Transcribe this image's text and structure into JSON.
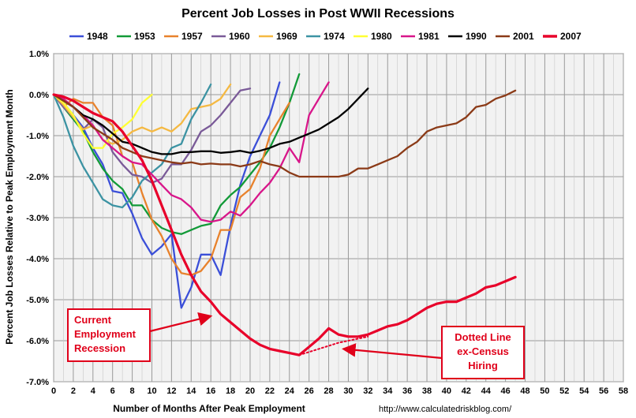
{
  "chart_data": {
    "type": "line",
    "title": "Percent Job Losses in Post WWII Recessions",
    "xlabel": "Number of Months After Peak Employment",
    "ylabel": "Percent Job Losses Relative to Peak Employment Month",
    "source": "http://www.calculatedriskblog.com/",
    "xlim": [
      0,
      58
    ],
    "ylim": [
      -7.0,
      1.0
    ],
    "x_ticks": [
      "0",
      "2",
      "4",
      "6",
      "8",
      "10",
      "12",
      "14",
      "16",
      "18",
      "20",
      "22",
      "24",
      "26",
      "28",
      "30",
      "32",
      "34",
      "36",
      "38",
      "40",
      "42",
      "44",
      "46",
      "48",
      "50",
      "52",
      "54",
      "56",
      "58"
    ],
    "y_ticks": [
      "1.0%",
      "0.0%",
      "-1.0%",
      "-2.0%",
      "-3.0%",
      "-4.0%",
      "-5.0%",
      "-6.0%",
      "-7.0%"
    ],
    "grid": true,
    "legend_position": "top",
    "series": [
      {
        "name": "1948",
        "color": "#3b4fd8",
        "values": [
          0,
          -0.2,
          -0.5,
          -0.8,
          -1.3,
          -1.7,
          -2.35,
          -2.4,
          -2.9,
          -3.5,
          -3.9,
          -3.7,
          -3.4,
          -5.2,
          -4.7,
          -3.9,
          -3.9,
          -4.4,
          -3.2,
          -2.2,
          -1.5,
          -1.0,
          -0.5,
          0.3
        ]
      },
      {
        "name": "1953",
        "color": "#129a38",
        "values": [
          0,
          -0.3,
          -0.6,
          -0.9,
          -1.4,
          -1.8,
          -2.1,
          -2.3,
          -2.7,
          -2.7,
          -3.05,
          -3.25,
          -3.35,
          -3.4,
          -3.3,
          -3.2,
          -3.15,
          -2.7,
          -2.45,
          -2.25,
          -1.95,
          -1.65,
          -1.3,
          -0.8,
          -0.2,
          0.5
        ]
      },
      {
        "name": "1957",
        "color": "#e8822c",
        "values": [
          0,
          -0.3,
          -0.1,
          -0.2,
          -0.2,
          -0.55,
          -0.75,
          -1.5,
          -1.65,
          -2.4,
          -3.05,
          -3.45,
          -4.0,
          -4.35,
          -4.4,
          -4.3,
          -4.0,
          -3.3,
          -3.3,
          -2.5,
          -2.3,
          -1.8,
          -1.0,
          -0.6,
          -0.2
        ]
      },
      {
        "name": "1960",
        "color": "#7a5a98",
        "values": [
          0,
          -0.3,
          -0.55,
          -0.85,
          -0.6,
          -0.8,
          -1.4,
          -1.7,
          -1.95,
          -2.0,
          -2.15,
          -2.05,
          -1.7,
          -1.7,
          -1.35,
          -0.9,
          -0.75,
          -0.5,
          -0.2,
          0.1,
          0.15
        ]
      },
      {
        "name": "1969",
        "color": "#f5b942",
        "values": [
          0,
          -0.25,
          -0.55,
          -0.85,
          -0.75,
          -1.1,
          -1.2,
          -1.1,
          -0.9,
          -0.8,
          -0.9,
          -0.8,
          -0.9,
          -0.7,
          -0.35,
          -0.3,
          -0.25,
          -0.1,
          0.25
        ]
      },
      {
        "name": "1974",
        "color": "#3c93a3",
        "values": [
          0,
          -0.55,
          -1.25,
          -1.75,
          -2.15,
          -2.55,
          -2.7,
          -2.75,
          -2.5,
          -2.1,
          -1.9,
          -1.7,
          -1.3,
          -1.2,
          -0.6,
          -0.2,
          0.25
        ]
      },
      {
        "name": "1980",
        "color": "#ffff33",
        "values": [
          0,
          -0.2,
          -0.5,
          -0.95,
          -1.3,
          -1.3,
          -0.95,
          -0.8,
          -0.6,
          -0.2,
          0.0
        ]
      },
      {
        "name": "1981",
        "color": "#d8168a",
        "values": [
          0,
          -0.1,
          -0.3,
          -0.5,
          -0.75,
          -1.1,
          -1.3,
          -1.5,
          -1.65,
          -1.7,
          -1.95,
          -2.2,
          -2.45,
          -2.55,
          -2.75,
          -3.05,
          -3.1,
          -3.05,
          -2.85,
          -2.95,
          -2.7,
          -2.4,
          -2.15,
          -1.8,
          -1.3,
          -1.65,
          -0.5,
          -0.1,
          0.3
        ]
      },
      {
        "name": "1990",
        "color": "#000000",
        "values": [
          0,
          -0.15,
          -0.3,
          -0.5,
          -0.6,
          -0.75,
          -0.95,
          -1.15,
          -1.2,
          -1.3,
          -1.4,
          -1.45,
          -1.45,
          -1.4,
          -1.4,
          -1.38,
          -1.38,
          -1.42,
          -1.4,
          -1.37,
          -1.42,
          -1.37,
          -1.3,
          -1.2,
          -1.15,
          -1.05,
          -0.95,
          -0.85,
          -0.7,
          -0.55,
          -0.35,
          -0.1,
          0.15
        ]
      },
      {
        "name": "2001",
        "color": "#8b3a17",
        "values": [
          0,
          -0.15,
          -0.3,
          -0.55,
          -0.8,
          -0.95,
          -1.1,
          -1.3,
          -1.4,
          -1.5,
          -1.55,
          -1.6,
          -1.65,
          -1.68,
          -1.65,
          -1.7,
          -1.68,
          -1.7,
          -1.7,
          -1.75,
          -1.7,
          -1.62,
          -1.7,
          -1.75,
          -1.9,
          -2.0,
          -2.0,
          -2.0,
          -2.0,
          -2.0,
          -1.95,
          -1.8,
          -1.8,
          -1.7,
          -1.6,
          -1.5,
          -1.3,
          -1.15,
          -0.9,
          -0.8,
          -0.75,
          -0.7,
          -0.55,
          -0.3,
          -0.25,
          -0.1,
          -0.02,
          0.1
        ]
      },
      {
        "name": "2007",
        "color": "#e8002a",
        "values": [
          0,
          -0.05,
          -0.15,
          -0.3,
          -0.45,
          -0.55,
          -0.65,
          -0.9,
          -1.25,
          -1.6,
          -2.1,
          -2.7,
          -3.3,
          -3.9,
          -4.4,
          -4.8,
          -5.05,
          -5.35,
          -5.55,
          -5.75,
          -5.95,
          -6.1,
          -6.2,
          -6.25,
          -6.3,
          -6.35,
          -6.15,
          -5.95,
          -5.7,
          -5.85,
          -5.9,
          -5.9,
          -5.85,
          -5.75,
          -5.65,
          -5.6,
          -5.5,
          -5.35,
          -5.2,
          -5.1,
          -5.05,
          -5.05,
          -4.95,
          -4.85,
          -4.7,
          -4.65,
          -4.55,
          -4.45
        ]
      },
      {
        "name": "2007 ex-Census",
        "color": "#e8002a",
        "dotted": true,
        "x": [
          25,
          27,
          29,
          31,
          32
        ],
        "values": [
          -6.35,
          -6.2,
          -6.05,
          -5.95,
          -5.9
        ]
      }
    ],
    "annotations": [
      {
        "lines": [
          "Current",
          "Employment",
          "Recession"
        ],
        "arrow_to": [
          16,
          -5.4
        ]
      },
      {
        "lines": [
          "Dotted Line",
          "ex-Census",
          "Hiring"
        ],
        "arrow_to": [
          29.5,
          -6.2
        ]
      }
    ]
  }
}
